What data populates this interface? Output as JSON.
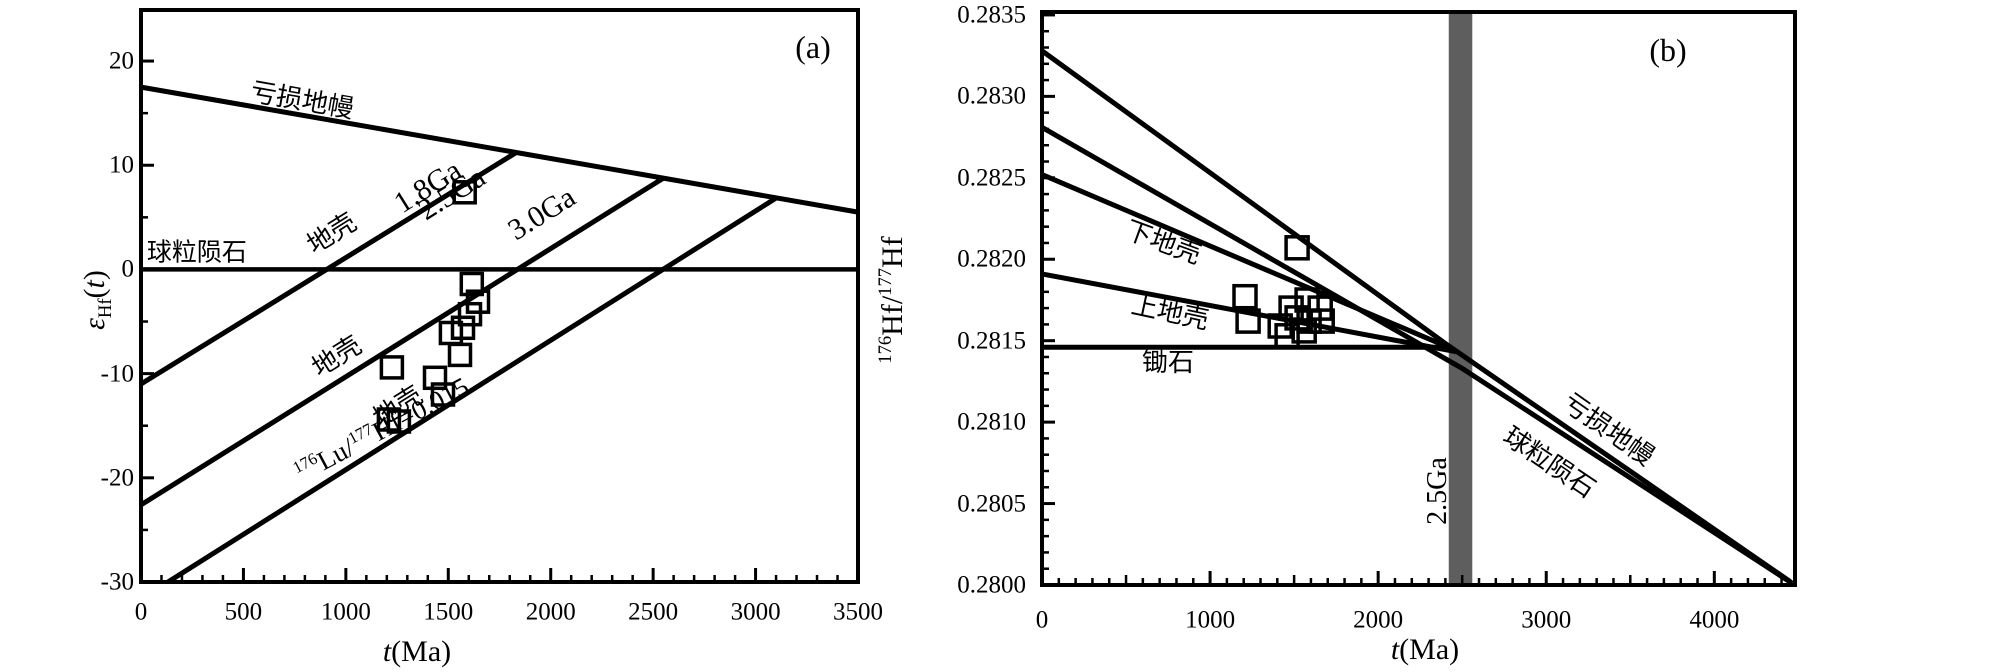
{
  "figure": {
    "background": "#ffffff",
    "line_color": "#000000",
    "band_color": "#5e5e5e"
  },
  "chart_data": {
    "type": "scatter",
    "panels": [
      {
        "id": "a",
        "tag": "(a)",
        "x_axis": {
          "title_parts": [
            {
              "t": "t",
              "s": "i"
            },
            {
              "t": "(Ma)"
            }
          ],
          "min": 0,
          "max": 3500,
          "minor_step": 100,
          "major_ticks": [
            {
              "v": 0,
              "label": "0"
            },
            {
              "v": 500,
              "label": "500"
            },
            {
              "v": 1000,
              "label": "1000"
            },
            {
              "v": 1500,
              "label": "1500"
            },
            {
              "v": 2000,
              "label": "2000"
            },
            {
              "v": 2500,
              "label": "2500"
            },
            {
              "v": 3000,
              "label": "3000"
            },
            {
              "v": 3500,
              "label": "3500"
            }
          ]
        },
        "y_axis": {
          "title_parts": [
            {
              "t": "ε",
              "s": "i"
            },
            {
              "t": "Hf",
              "s": "sub"
            },
            {
              "t": "("
            },
            {
              "t": "t",
              "s": "i"
            },
            {
              "t": ")"
            }
          ],
          "min": -30,
          "max": 24.9,
          "minor_step": 5,
          "major_ticks": [
            {
              "v": 20,
              "label": "20"
            },
            {
              "v": 10,
              "label": "10"
            },
            {
              "v": 0,
              "label": "0"
            },
            {
              "v": -10,
              "label": "-10"
            },
            {
              "v": -20,
              "label": "-20"
            },
            {
              "v": -30,
              "label": "-30"
            }
          ]
        },
        "evolution_lines": [
          {
            "name": "depleted-mantle",
            "points": [
              [
                0,
                17.5
              ],
              [
                3500,
                5.5
              ]
            ],
            "width": 5
          },
          {
            "name": "chondrite",
            "points": [
              [
                0,
                0
              ],
              [
                3500,
                0
              ]
            ],
            "width": 4.5
          },
          {
            "name": "crust-1.8Ga",
            "points": [
              [
                0,
                -11
              ],
              [
                1830,
                11.2
              ]
            ],
            "width": 5
          },
          {
            "name": "crust-2.5Ga",
            "points": [
              [
                0,
                -22.6
              ],
              [
                2553,
                8.8
              ]
            ],
            "width": 5
          },
          {
            "name": "crust-3.0Ga",
            "points": [
              [
                132,
                -30
              ],
              [
                3104,
                6.9
              ]
            ],
            "width": 5
          }
        ],
        "line_labels": [
          {
            "text": "亏损地幔",
            "t": 786,
            "v": 16.2,
            "rot": 10,
            "size": 26
          },
          {
            "text": "球粒陨石",
            "t": 273,
            "v": 1.6,
            "rot": 0,
            "size": 25
          },
          {
            "text": "地壳",
            "t": 932,
            "v": 3.4,
            "rot": -32,
            "size": 26
          },
          {
            "text": "1.8Ga",
            "t": 1401,
            "v": 7.9,
            "rot": -32,
            "size": 30
          },
          {
            "text": "地壳",
            "t": 957,
            "v": -8.4,
            "rot": -32,
            "size": 26
          },
          {
            "text": "2.5Ga",
            "t": 1518,
            "v": 7.2,
            "rot": -32,
            "size": 30
          },
          {
            "text": "地壳",
            "t": 1254,
            "v": -13.2,
            "rot": -32,
            "size": 26
          },
          {
            "text": "3.0Ga",
            "t": 1957,
            "v": 5.3,
            "rot": -32,
            "size": 30
          },
          {
            "parts": [
              {
                "t": "176",
                "s": "sup"
              },
              {
                "t": "Lu/"
              },
              {
                "t": "177",
                "s": "sup"
              },
              {
                "t": "Hf=0.015"
              }
            ],
            "t": 1176,
            "v": -15.4,
            "rot": -28,
            "size": 27
          }
        ],
        "marker": {
          "shape": "open-square",
          "size": 21,
          "stroke_width": 3.5
        },
        "data_points": [
          [
            1580,
            7.4
          ],
          [
            1615,
            -1.4
          ],
          [
            1645,
            -3.1
          ],
          [
            1606,
            -4.3
          ],
          [
            1572,
            -5.6
          ],
          [
            1513,
            -6.1
          ],
          [
            1557,
            -8.2
          ],
          [
            1225,
            -9.4
          ],
          [
            1435,
            -10.4
          ],
          [
            1474,
            -12.0
          ],
          [
            1210,
            -14.4
          ],
          [
            1259,
            -14.6
          ]
        ]
      },
      {
        "id": "b",
        "tag": "(b)",
        "x_axis": {
          "title_parts": [
            {
              "t": "t",
              "s": "i"
            },
            {
              "t": "(Ma)"
            }
          ],
          "min": 0,
          "max": 4480,
          "minor_step": 100,
          "major_ticks": [
            {
              "v": 0,
              "label": "0"
            },
            {
              "v": 1000,
              "label": "1000"
            },
            {
              "v": 2000,
              "label": "2000"
            },
            {
              "v": 3000,
              "label": "3000"
            },
            {
              "v": 4000,
              "label": "4000"
            }
          ]
        },
        "y_axis": {
          "title_parts": [
            {
              "t": "176",
              "s": "sup"
            },
            {
              "t": "Hf/"
            },
            {
              "t": "177",
              "s": "sup"
            },
            {
              "t": "Hf"
            }
          ],
          "min": 0.28,
          "max": 0.283518,
          "minor_step": 0.0001,
          "major_ticks": [
            {
              "v": 0.2835,
              "label": "0.2835"
            },
            {
              "v": 0.283,
              "label": "0.2830"
            },
            {
              "v": 0.2825,
              "label": "0.2825"
            },
            {
              "v": 0.282,
              "label": "0.2820"
            },
            {
              "v": 0.2815,
              "label": "0.2815"
            },
            {
              "v": 0.281,
              "label": "0.2810"
            },
            {
              "v": 0.2805,
              "label": "0.2805"
            },
            {
              "v": 0.28,
              "label": "0.2800"
            }
          ]
        },
        "highlight_band": {
          "label": "2.5Ga",
          "t_start": 2420,
          "t_end": 2560
        },
        "evolution_lines": [
          {
            "name": "depleted-mantle",
            "points": [
              [
                0,
                0.28328
              ],
              [
                2417,
                0.28147
              ],
              [
                4452,
                0.28002
              ]
            ],
            "width": 5
          },
          {
            "name": "chondrite",
            "points": [
              [
                0,
                0.28281
              ],
              [
                2500,
                0.28133
              ],
              [
                4464,
                0.28001
              ]
            ],
            "width": 5
          },
          {
            "name": "lower-crust",
            "points": [
              [
                0,
                0.28252
              ],
              [
                2440,
                0.28145
              ]
            ],
            "width": 5
          },
          {
            "name": "upper-crust",
            "points": [
              [
                0,
                0.28191
              ],
              [
                2476,
                0.28143
              ]
            ],
            "width": 5
          },
          {
            "name": "zircon",
            "points": [
              [
                0,
                0.28146
              ],
              [
                2430,
                0.28146
              ]
            ],
            "width": 5
          }
        ],
        "line_labels": [
          {
            "text": "下地壳",
            "t": 720,
            "v": 0.2821,
            "rot": 20,
            "size": 26
          },
          {
            "text": "上地壳",
            "t": 762,
            "v": 0.28167,
            "rot": 12,
            "size": 26
          },
          {
            "text": "锄石",
            "t": 750,
            "v": 0.28136,
            "rot": 0,
            "size": 26
          },
          {
            "text": "亏损地幔",
            "t": 3369,
            "v": 0.28095,
            "rot": 35,
            "size": 26
          },
          {
            "text": "球粒陨石",
            "t": 3018,
            "v": 0.28075,
            "rot": 34,
            "size": 26
          },
          {
            "text": "2.5Ga",
            "t": 2357,
            "v": 0.28058,
            "rot": -90,
            "size": 28
          }
        ],
        "marker": {
          "shape": "open-square",
          "size": 22,
          "stroke_width": 3.5
        },
        "data_points": [
          [
            1518,
            0.28207
          ],
          [
            1208,
            0.28177
          ],
          [
            1226,
            0.28162
          ],
          [
            1482,
            0.2817
          ],
          [
            1577,
            0.28175
          ],
          [
            1655,
            0.2817
          ],
          [
            1518,
            0.28164
          ],
          [
            1589,
            0.28162
          ],
          [
            1667,
            0.28162
          ],
          [
            1417,
            0.28159
          ],
          [
            1458,
            0.28153
          ],
          [
            1560,
            0.28156
          ]
        ]
      }
    ]
  }
}
